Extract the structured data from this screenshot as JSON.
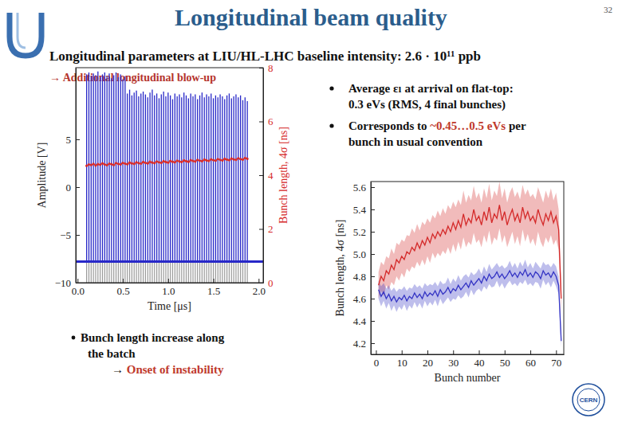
{
  "slide": {
    "title": "Longitudinal beam quality",
    "page": "32",
    "subtitle": "Longitudinal parameters at LIU/HL-LHC baseline intensity: 2.6 · 10¹¹ ppb",
    "note": [
      {
        "text": "→ Additional longitudinal blow-up",
        "color": "#b5342c"
      }
    ],
    "bullets": [
      {
        "lines": [
          [
            {
              "text": "Average εₗ at arrival on flat-top:"
            }
          ],
          [
            {
              "text": "0.3 eVs (RMS, 4 final bunches)"
            }
          ]
        ]
      },
      {
        "lines": [
          [
            {
              "text": "Corresponds to "
            },
            {
              "text": "~0.45…0.5 eVs",
              "color": "#c0392b"
            },
            {
              "text": " per"
            }
          ],
          [
            {
              "text": "bunch in usual convention"
            }
          ]
        ]
      }
    ],
    "chart_note": {
      "lines": [
        [
          {
            "text": "Bunch length increase along"
          }
        ],
        [
          {
            "text": "the batch"
          }
        ],
        [
          {
            "text": "→ "
          },
          {
            "text": "Onset of instability",
            "color": "#c0392b"
          }
        ]
      ]
    },
    "logo": "CERN"
  },
  "chart_data": [
    {
      "type": "line",
      "x_label": "Time [μs]",
      "y_label": "Amplitude [V]",
      "y2_label": "Bunch length, 4σ [ns]",
      "xlim": [
        -0.02,
        2.05
      ],
      "xticks": [
        {
          "value": 0,
          "label": "0.0"
        },
        0.5,
        {
          "value": 1,
          "label": "1.0"
        },
        1.5,
        {
          "value": 2,
          "label": "2.0"
        }
      ],
      "ylim": [
        -10,
        12.5
      ],
      "yticks": [
        {
          "value": -10,
          "label": "−10"
        },
        {
          "value": -5,
          "label": "−5"
        },
        0,
        5
      ],
      "y2lim": [
        0,
        8
      ],
      "y2ticks": [
        0,
        2,
        4,
        6,
        8
      ],
      "x": [
        0.1,
        0.125,
        0.15,
        0.175,
        0.2,
        0.225,
        0.25,
        0.275,
        0.3,
        0.325,
        0.35,
        0.375,
        0.4,
        0.425,
        0.45,
        0.475,
        0.5,
        0.525,
        0.55,
        0.575,
        0.6,
        0.625,
        0.65,
        0.675,
        0.7,
        0.725,
        0.75,
        0.775,
        0.8,
        0.825,
        0.85,
        0.875,
        0.9,
        0.925,
        0.95,
        0.975,
        1.0,
        1.025,
        1.05,
        1.075,
        1.1,
        1.125,
        1.15,
        1.175,
        1.2,
        1.225,
        1.25,
        1.275,
        1.3,
        1.325,
        1.35,
        1.375,
        1.4,
        1.425,
        1.45,
        1.475,
        1.5,
        1.525,
        1.55,
        1.575,
        1.6,
        1.625,
        1.65,
        1.675,
        1.7,
        1.725,
        1.75,
        1.775,
        1.8,
        1.825,
        1.85,
        1.875
      ],
      "series": [
        {
          "type": "spike",
          "color": "#2828c8",
          "baseline": -7.8,
          "values": [
            11.8,
            12.0,
            11.6,
            11.9,
            11.7,
            12.1,
            11.5,
            11.8,
            12.0,
            11.6,
            11.9,
            11.4,
            11.7,
            12.0,
            11.5,
            11.8,
            11.3,
            11.6,
            9.8,
            10.2,
            9.6,
            9.9,
            10.1,
            9.5,
            9.8,
            10.0,
            9.7,
            9.4,
            9.9,
            10.2,
            9.6,
            9.8,
            9.3,
            9.7,
            10.0,
            9.5,
            9.9,
            9.6,
            9.2,
            9.8,
            9.5,
            9.7,
            9.4,
            9.9,
            9.6,
            9.3,
            9.8,
            9.5,
            9.7,
            9.2,
            9.6,
            9.9,
            9.4,
            9.7,
            9.5,
            9.8,
            9.3,
            9.6,
            9.4,
            9.7,
            9.5,
            9.2,
            9.6,
            9.8,
            9.3,
            9.5,
            9.7,
            9.4,
            9.6,
            9.1,
            9.4,
            9.0
          ]
        },
        {
          "axis": "y2",
          "color": "#d62a2a",
          "marker": "circle",
          "values": [
            4.35,
            4.4,
            4.38,
            4.42,
            4.36,
            4.41,
            4.39,
            4.44,
            4.4,
            4.37,
            4.43,
            4.41,
            4.38,
            4.45,
            4.42,
            4.4,
            4.46,
            4.43,
            4.41,
            4.47,
            4.44,
            4.42,
            4.48,
            4.45,
            4.43,
            4.49,
            4.46,
            4.44,
            4.5,
            4.47,
            4.45,
            4.51,
            4.48,
            4.46,
            4.52,
            4.49,
            4.47,
            4.53,
            4.5,
            4.48,
            4.54,
            4.51,
            4.49,
            4.55,
            4.52,
            4.5,
            4.56,
            4.53,
            4.51,
            4.57,
            4.54,
            4.52,
            4.58,
            4.55,
            4.53,
            4.59,
            4.56,
            4.54,
            4.6,
            4.57,
            4.55,
            4.61,
            4.58,
            4.56,
            4.62,
            4.59,
            4.57,
            4.63,
            4.6,
            4.58,
            4.64,
            4.61
          ]
        }
      ]
    },
    {
      "type": "line",
      "x_label": "Bunch number",
      "y_label": "Bunch length, 4σ [ns]",
      "xlim": [
        -2,
        73
      ],
      "xticks": [
        0,
        10,
        20,
        30,
        40,
        50,
        60,
        70
      ],
      "ylim": [
        4.1,
        5.65
      ],
      "yticks": [
        4.2,
        4.4,
        4.6,
        4.8,
        {
          "value": 5,
          "label": "5.0"
        },
        5.2,
        5.4,
        5.6
      ],
      "x": [
        1,
        2,
        3,
        4,
        5,
        6,
        7,
        8,
        9,
        10,
        11,
        12,
        13,
        14,
        15,
        16,
        17,
        18,
        19,
        20,
        21,
        22,
        23,
        24,
        25,
        26,
        27,
        28,
        29,
        30,
        31,
        32,
        33,
        34,
        35,
        36,
        37,
        38,
        39,
        40,
        41,
        42,
        43,
        44,
        45,
        46,
        47,
        48,
        49,
        50,
        51,
        52,
        53,
        54,
        55,
        56,
        57,
        58,
        59,
        60,
        61,
        62,
        63,
        64,
        65,
        66,
        67,
        68,
        69,
        70,
        71,
        72
      ],
      "series": [
        {
          "color": "#d42a2a",
          "values": [
            4.72,
            4.8,
            4.76,
            4.85,
            4.82,
            4.9,
            4.86,
            4.95,
            4.92,
            4.98,
            4.95,
            5.02,
            5.0,
            5.06,
            5.03,
            5.1,
            5.05,
            5.12,
            5.08,
            5.15,
            5.1,
            5.18,
            5.14,
            5.2,
            5.16,
            5.22,
            5.18,
            5.25,
            5.2,
            5.28,
            5.22,
            5.3,
            5.24,
            5.36,
            5.26,
            5.32,
            5.28,
            5.4,
            5.3,
            5.34,
            5.26,
            5.38,
            5.3,
            5.42,
            5.28,
            5.36,
            5.32,
            5.44,
            5.3,
            5.38,
            5.26,
            5.34,
            5.4,
            5.3,
            5.36,
            5.28,
            5.42,
            5.32,
            5.38,
            5.3,
            5.34,
            5.28,
            5.4,
            5.32,
            5.26,
            5.36,
            5.3,
            5.38,
            5.28,
            5.34,
            5.22,
            4.6
          ],
          "spread": [
            0.12,
            0.13,
            0.14,
            0.13,
            0.14,
            0.15,
            0.14,
            0.15,
            0.16,
            0.15,
            0.16,
            0.15,
            0.16,
            0.17,
            0.16,
            0.17,
            0.16,
            0.17,
            0.18,
            0.17,
            0.18,
            0.17,
            0.18,
            0.19,
            0.18,
            0.19,
            0.18,
            0.19,
            0.2,
            0.19,
            0.2,
            0.19,
            0.2,
            0.21,
            0.2,
            0.21,
            0.2,
            0.21,
            0.2,
            0.21,
            0.2,
            0.21,
            0.2,
            0.21,
            0.2,
            0.21,
            0.2,
            0.21,
            0.2,
            0.21,
            0.2,
            0.21,
            0.2,
            0.21,
            0.2,
            0.21,
            0.2,
            0.21,
            0.2,
            0.21,
            0.2,
            0.21,
            0.2,
            0.21,
            0.2,
            0.21,
            0.2,
            0.21,
            0.2,
            0.21,
            0.18,
            0.15
          ]
        },
        {
          "color": "#3434c4",
          "values": [
            4.68,
            4.62,
            4.66,
            4.6,
            4.64,
            4.58,
            4.62,
            4.57,
            4.61,
            4.59,
            4.63,
            4.58,
            4.62,
            4.6,
            4.65,
            4.61,
            4.64,
            4.6,
            4.66,
            4.62,
            4.65,
            4.63,
            4.67,
            4.62,
            4.68,
            4.64,
            4.66,
            4.7,
            4.65,
            4.69,
            4.67,
            4.72,
            4.68,
            4.71,
            4.74,
            4.7,
            4.76,
            4.72,
            4.75,
            4.78,
            4.74,
            4.8,
            4.76,
            4.82,
            4.78,
            4.8,
            4.84,
            4.79,
            4.82,
            4.78,
            4.81,
            4.85,
            4.8,
            4.83,
            4.79,
            4.84,
            4.81,
            4.86,
            4.8,
            4.83,
            4.79,
            4.84,
            4.82,
            4.78,
            4.85,
            4.81,
            4.83,
            4.79,
            4.84,
            4.8,
            4.72,
            4.22
          ],
          "spread": [
            0.08,
            0.09,
            0.08,
            0.09,
            0.08,
            0.09,
            0.08,
            0.09,
            0.08,
            0.09,
            0.08,
            0.09,
            0.08,
            0.09,
            0.08,
            0.09,
            0.08,
            0.09,
            0.08,
            0.09,
            0.08,
            0.09,
            0.08,
            0.09,
            0.08,
            0.09,
            0.08,
            0.09,
            0.08,
            0.09,
            0.08,
            0.09,
            0.08,
            0.09,
            0.08,
            0.09,
            0.08,
            0.09,
            0.08,
            0.09,
            0.08,
            0.09,
            0.08,
            0.09,
            0.08,
            0.09,
            0.08,
            0.09,
            0.08,
            0.09,
            0.08,
            0.09,
            0.08,
            0.09,
            0.08,
            0.09,
            0.08,
            0.09,
            0.08,
            0.09,
            0.08,
            0.09,
            0.08,
            0.09,
            0.08,
            0.09,
            0.08,
            0.09,
            0.08,
            0.09,
            0.08,
            0.06
          ]
        }
      ]
    }
  ]
}
